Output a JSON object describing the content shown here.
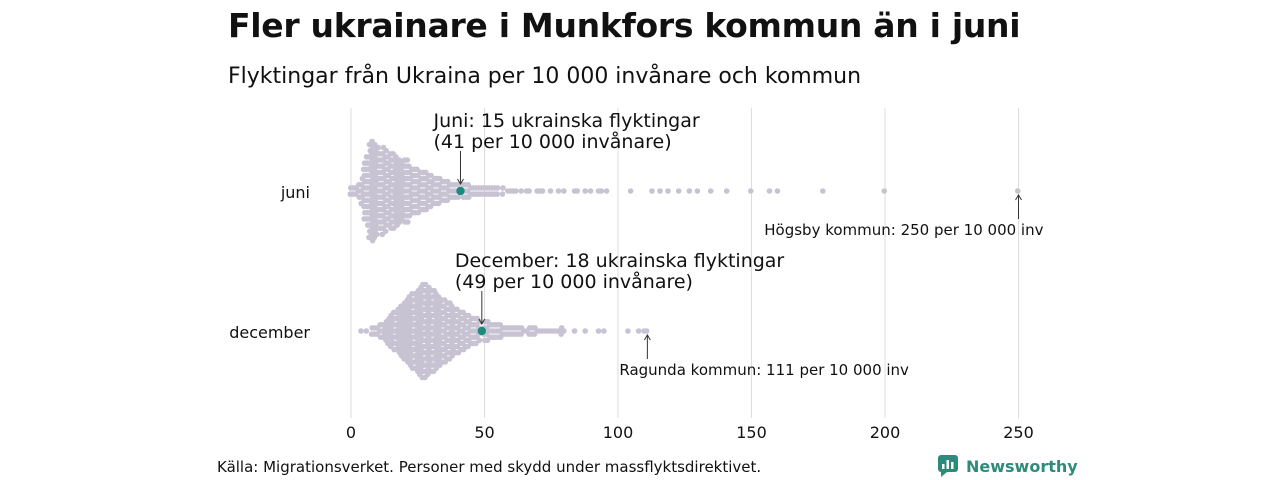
{
  "title": "Fler ukrainare i Munkfors kommun än i juni",
  "subtitle": "Flyktingar från Ukraina per 10 000 invånare och kommun",
  "source": "Källa: Migrationsverket. Personer med skydd under massflyktsdirektivet.",
  "brand": "Newsworthy",
  "colors": {
    "dot": "#c7c3d2",
    "highlight": "#1e8a7e",
    "grid": "#dddddd",
    "text": "#111111",
    "brand": "#2e8b7b"
  },
  "chart_data": {
    "type": "scatter",
    "subtype": "beeswarm",
    "title": "Fler ukrainare i Munkfors kommun än i juni",
    "subtitle": "Flyktingar från Ukraina per 10 000 invånare och kommun",
    "xlabel": "",
    "ylabel": "",
    "xlim": [
      0,
      260
    ],
    "xticks": [
      "0",
      "50",
      "100",
      "150",
      "200",
      "250"
    ],
    "tick_values": [
      0,
      50,
      100,
      150,
      200,
      250
    ],
    "grid": true,
    "categories": [
      "juni",
      "december"
    ],
    "series": [
      {
        "name": "juni",
        "highlight": {
          "value": 41,
          "label_line1": "Juni: 15 ukrainska flyktingar",
          "label_line2": "(41 per 10 000 invånare)"
        },
        "max": {
          "value": 250,
          "label": "Högsby kommun: 250 per 10 000 inv"
        },
        "density": [
          [
            0,
            2
          ],
          [
            1,
            2
          ],
          [
            2,
            2
          ],
          [
            3,
            3
          ],
          [
            4,
            5
          ],
          [
            5,
            10
          ],
          [
            6,
            12
          ],
          [
            7,
            16
          ],
          [
            8,
            17
          ],
          [
            9,
            16
          ],
          [
            10,
            15
          ],
          [
            11,
            13
          ],
          [
            12,
            15
          ],
          [
            13,
            14
          ],
          [
            14,
            12
          ],
          [
            15,
            13
          ],
          [
            16,
            13
          ],
          [
            17,
            12
          ],
          [
            18,
            11
          ],
          [
            19,
            10
          ],
          [
            20,
            11
          ],
          [
            21,
            11
          ],
          [
            22,
            9
          ],
          [
            23,
            8
          ],
          [
            24,
            8
          ],
          [
            25,
            8
          ],
          [
            26,
            7
          ],
          [
            27,
            7
          ],
          [
            28,
            7
          ],
          [
            29,
            6
          ],
          [
            30,
            6
          ],
          [
            31,
            5
          ],
          [
            32,
            5
          ],
          [
            33,
            5
          ],
          [
            34,
            4
          ],
          [
            35,
            4
          ],
          [
            36,
            4
          ],
          [
            37,
            3
          ],
          [
            38,
            3
          ],
          [
            39,
            3
          ],
          [
            40,
            3
          ],
          [
            42,
            3
          ],
          [
            43,
            3
          ],
          [
            44,
            3
          ],
          [
            45,
            2
          ],
          [
            46,
            2
          ],
          [
            47,
            2
          ],
          [
            48,
            2
          ],
          [
            49,
            2
          ],
          [
            50,
            2
          ],
          [
            51,
            2
          ],
          [
            52,
            2
          ],
          [
            53,
            2
          ],
          [
            54,
            2
          ],
          [
            55,
            2
          ],
          [
            57,
            2
          ],
          [
            59,
            1
          ],
          [
            60,
            1
          ],
          [
            61,
            1
          ],
          [
            62,
            1
          ],
          [
            64,
            1
          ],
          [
            66,
            1
          ],
          [
            67,
            1
          ],
          [
            70,
            1
          ],
          [
            71,
            1
          ],
          [
            72,
            1
          ],
          [
            75,
            1
          ],
          [
            78,
            1
          ],
          [
            80,
            1
          ],
          [
            84,
            1
          ],
          [
            85,
            1
          ],
          [
            88,
            1
          ],
          [
            90,
            1
          ],
          [
            93,
            1
          ],
          [
            94,
            1
          ],
          [
            96,
            1
          ],
          [
            105,
            1
          ],
          [
            113,
            1
          ],
          [
            116,
            1
          ],
          [
            119,
            1
          ],
          [
            123,
            1
          ],
          [
            127,
            1
          ],
          [
            130,
            1
          ],
          [
            135,
            1
          ],
          [
            141,
            1
          ],
          [
            150,
            1
          ],
          [
            157,
            1
          ],
          [
            160,
            1
          ],
          [
            177,
            1
          ],
          [
            200,
            1
          ],
          [
            250,
            1
          ]
        ]
      },
      {
        "name": "december",
        "highlight": {
          "value": 49,
          "label_line1": "December: 18 ukrainska flyktingar",
          "label_line2": "(49 per 10 000 invånare)"
        },
        "max": {
          "value": 111,
          "label": "Ragunda kommun: 111 per 10 000 inv"
        },
        "density": [
          [
            4,
            1
          ],
          [
            6,
            1
          ],
          [
            8,
            2
          ],
          [
            9,
            2
          ],
          [
            10,
            2
          ],
          [
            11,
            3
          ],
          [
            12,
            3
          ],
          [
            13,
            4
          ],
          [
            14,
            5
          ],
          [
            15,
            6
          ],
          [
            16,
            7
          ],
          [
            17,
            7
          ],
          [
            18,
            8
          ],
          [
            19,
            9
          ],
          [
            20,
            10
          ],
          [
            21,
            11
          ],
          [
            22,
            12
          ],
          [
            23,
            13
          ],
          [
            24,
            13
          ],
          [
            25,
            14
          ],
          [
            26,
            15
          ],
          [
            27,
            16
          ],
          [
            28,
            16
          ],
          [
            29,
            15
          ],
          [
            30,
            14
          ],
          [
            31,
            14
          ],
          [
            32,
            13
          ],
          [
            33,
            12
          ],
          [
            34,
            11
          ],
          [
            35,
            11
          ],
          [
            36,
            10
          ],
          [
            37,
            10
          ],
          [
            38,
            9
          ],
          [
            39,
            8
          ],
          [
            40,
            8
          ],
          [
            41,
            7
          ],
          [
            42,
            7
          ],
          [
            43,
            6
          ],
          [
            44,
            6
          ],
          [
            45,
            5
          ],
          [
            46,
            5
          ],
          [
            47,
            5
          ],
          [
            48,
            4
          ],
          [
            50,
            4
          ],
          [
            51,
            4
          ],
          [
            52,
            3
          ],
          [
            53,
            3
          ],
          [
            54,
            3
          ],
          [
            55,
            3
          ],
          [
            56,
            3
          ],
          [
            57,
            2
          ],
          [
            58,
            2
          ],
          [
            59,
            2
          ],
          [
            60,
            2
          ],
          [
            61,
            2
          ],
          [
            62,
            2
          ],
          [
            63,
            2
          ],
          [
            64,
            2
          ],
          [
            65,
            1
          ],
          [
            66,
            1
          ],
          [
            67,
            2
          ],
          [
            68,
            2
          ],
          [
            69,
            2
          ],
          [
            70,
            1
          ],
          [
            71,
            1
          ],
          [
            72,
            1
          ],
          [
            73,
            1
          ],
          [
            74,
            1
          ],
          [
            75,
            1
          ],
          [
            76,
            1
          ],
          [
            77,
            1
          ],
          [
            78,
            1
          ],
          [
            79,
            2
          ],
          [
            80,
            1
          ],
          [
            84,
            1
          ],
          [
            88,
            1
          ],
          [
            93,
            1
          ],
          [
            95,
            1
          ],
          [
            104,
            1
          ],
          [
            108,
            1
          ],
          [
            110,
            1
          ],
          [
            111,
            1
          ]
        ]
      }
    ]
  }
}
